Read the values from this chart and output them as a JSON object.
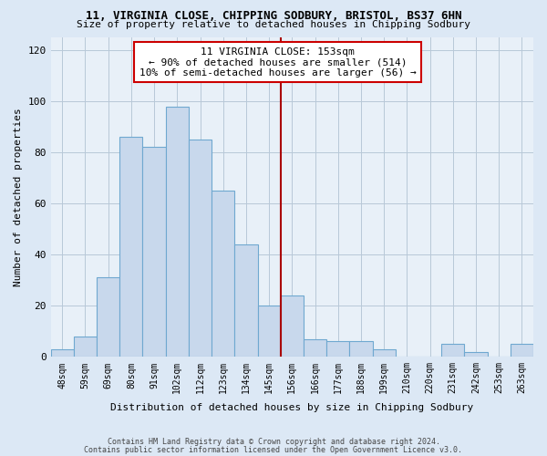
{
  "title1": "11, VIRGINIA CLOSE, CHIPPING SODBURY, BRISTOL, BS37 6HN",
  "title2": "Size of property relative to detached houses in Chipping Sodbury",
  "xlabel": "Distribution of detached houses by size in Chipping Sodbury",
  "ylabel": "Number of detached properties",
  "footer1": "Contains HM Land Registry data © Crown copyright and database right 2024.",
  "footer2": "Contains public sector information licensed under the Open Government Licence v3.0.",
  "bar_labels": [
    "48sqm",
    "59sqm",
    "69sqm",
    "80sqm",
    "91sqm",
    "102sqm",
    "112sqm",
    "123sqm",
    "134sqm",
    "145sqm",
    "156sqm",
    "166sqm",
    "177sqm",
    "188sqm",
    "199sqm",
    "210sqm",
    "220sqm",
    "231sqm",
    "242sqm",
    "253sqm",
    "263sqm"
  ],
  "bar_values": [
    3,
    8,
    31,
    86,
    82,
    98,
    85,
    65,
    44,
    20,
    24,
    7,
    6,
    6,
    3,
    0,
    0,
    5,
    2,
    0,
    5
  ],
  "bar_color": "#c8d8ec",
  "bar_edge_color": "#6fa8d0",
  "reference_line_label": "11 VIRGINIA CLOSE: 153sqm",
  "annotation_line1": "← 90% of detached houses are smaller (514)",
  "annotation_line2": "10% of semi-detached houses are larger (56) →",
  "annotation_box_edge": "#cc0000",
  "ref_bar_index": 10,
  "ylim": [
    0,
    125
  ],
  "yticks": [
    0,
    20,
    40,
    60,
    80,
    100,
    120
  ],
  "background_color": "#dce8f5",
  "plot_bg_color": "#e8f0f8",
  "grid_color": "#b8c8d8"
}
